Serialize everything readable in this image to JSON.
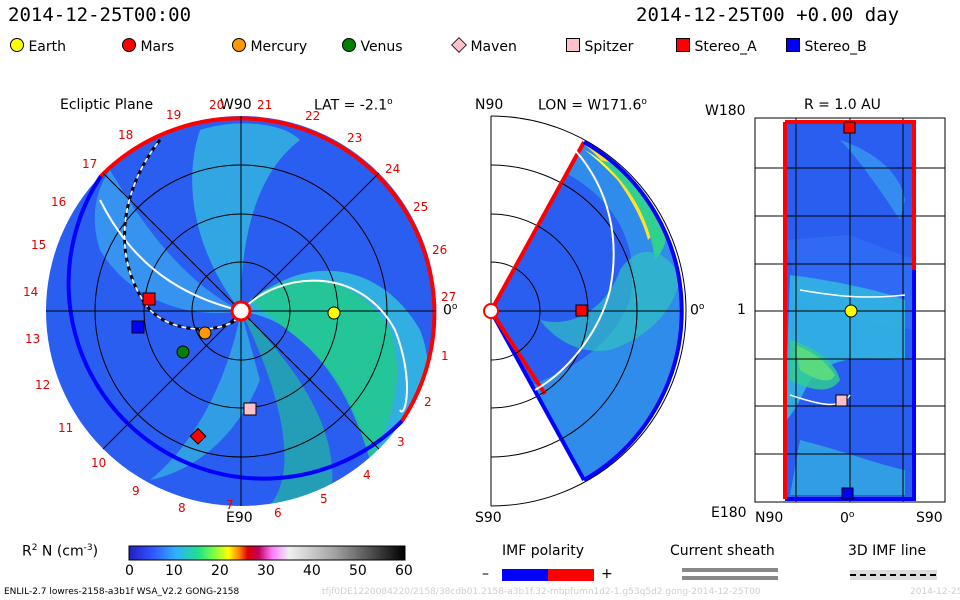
{
  "header": {
    "left_time": "2014-12-25T00:00",
    "right_time": "2014-12-25T00 +0.00 day"
  },
  "legend": [
    {
      "name": "Earth",
      "color": "#ffff00",
      "shape": "circle"
    },
    {
      "name": "Mars",
      "color": "#ff0000",
      "shape": "circle"
    },
    {
      "name": "Mercury",
      "color": "#ff9900",
      "shape": "circle"
    },
    {
      "name": "Venus",
      "color": "#008000",
      "shape": "circle"
    },
    {
      "name": "Maven",
      "color": "#ffc0cb",
      "shape": "diamond"
    },
    {
      "name": "Spitzer",
      "color": "#ffc0cb",
      "shape": "square"
    },
    {
      "name": "Stereo_A",
      "color": "#ff0000",
      "shape": "square"
    },
    {
      "name": "Stereo_B",
      "color": "#0000ff",
      "shape": "square"
    }
  ],
  "panel1": {
    "title": "Ecliptic Plane",
    "top_label": "W90",
    "lat_label": "LAT = -2.1",
    "deg": "o",
    "right_label": "0",
    "bottom_label": "E90",
    "carrington_ticks": [
      "19",
      "20",
      "21",
      "22",
      "23",
      "24",
      "25",
      "26",
      "27",
      "1",
      "2",
      "3",
      "4",
      "5",
      "6",
      "7",
      "8",
      "9",
      "10",
      "11",
      "12",
      "13",
      "14",
      "15",
      "16",
      "17",
      "18"
    ]
  },
  "panel2": {
    "top_left": "N90",
    "lon_label": "LON = W171.6",
    "deg": "o",
    "right_label": "0",
    "bottom_left": "S90"
  },
  "panel3": {
    "title": "R = 1.0 AU",
    "top_left": "W180",
    "mid_left": "1",
    "bottom_left": "E180",
    "x_labels": [
      "N90",
      "0",
      "S90"
    ],
    "deg": "o"
  },
  "colorbar": {
    "label": "R",
    "sup2": "2",
    "label2": " N (cm",
    "sup3": "-3",
    "label3": ")",
    "ticks": [
      "0",
      "10",
      "20",
      "30",
      "40",
      "50",
      "60"
    ],
    "range": [
      0,
      60
    ]
  },
  "imf": {
    "title": "IMF polarity",
    "minus": "–",
    "plus": "+"
  },
  "sheath": {
    "title": "Current sheath"
  },
  "imf3d": {
    "title": "3D IMF line"
  },
  "footer": {
    "model": "ENLIL-2.7 lowres-2158-a3b1f WSA_V2.2 GONG-2158",
    "faint": "tfjf0DE1220084220/2158/38cdb01.2158-a3b1f.32-mbpfumn1d2-1.g53q5d2.gong-2014-12-25T00",
    "faint_date": "2014-12-25"
  }
}
